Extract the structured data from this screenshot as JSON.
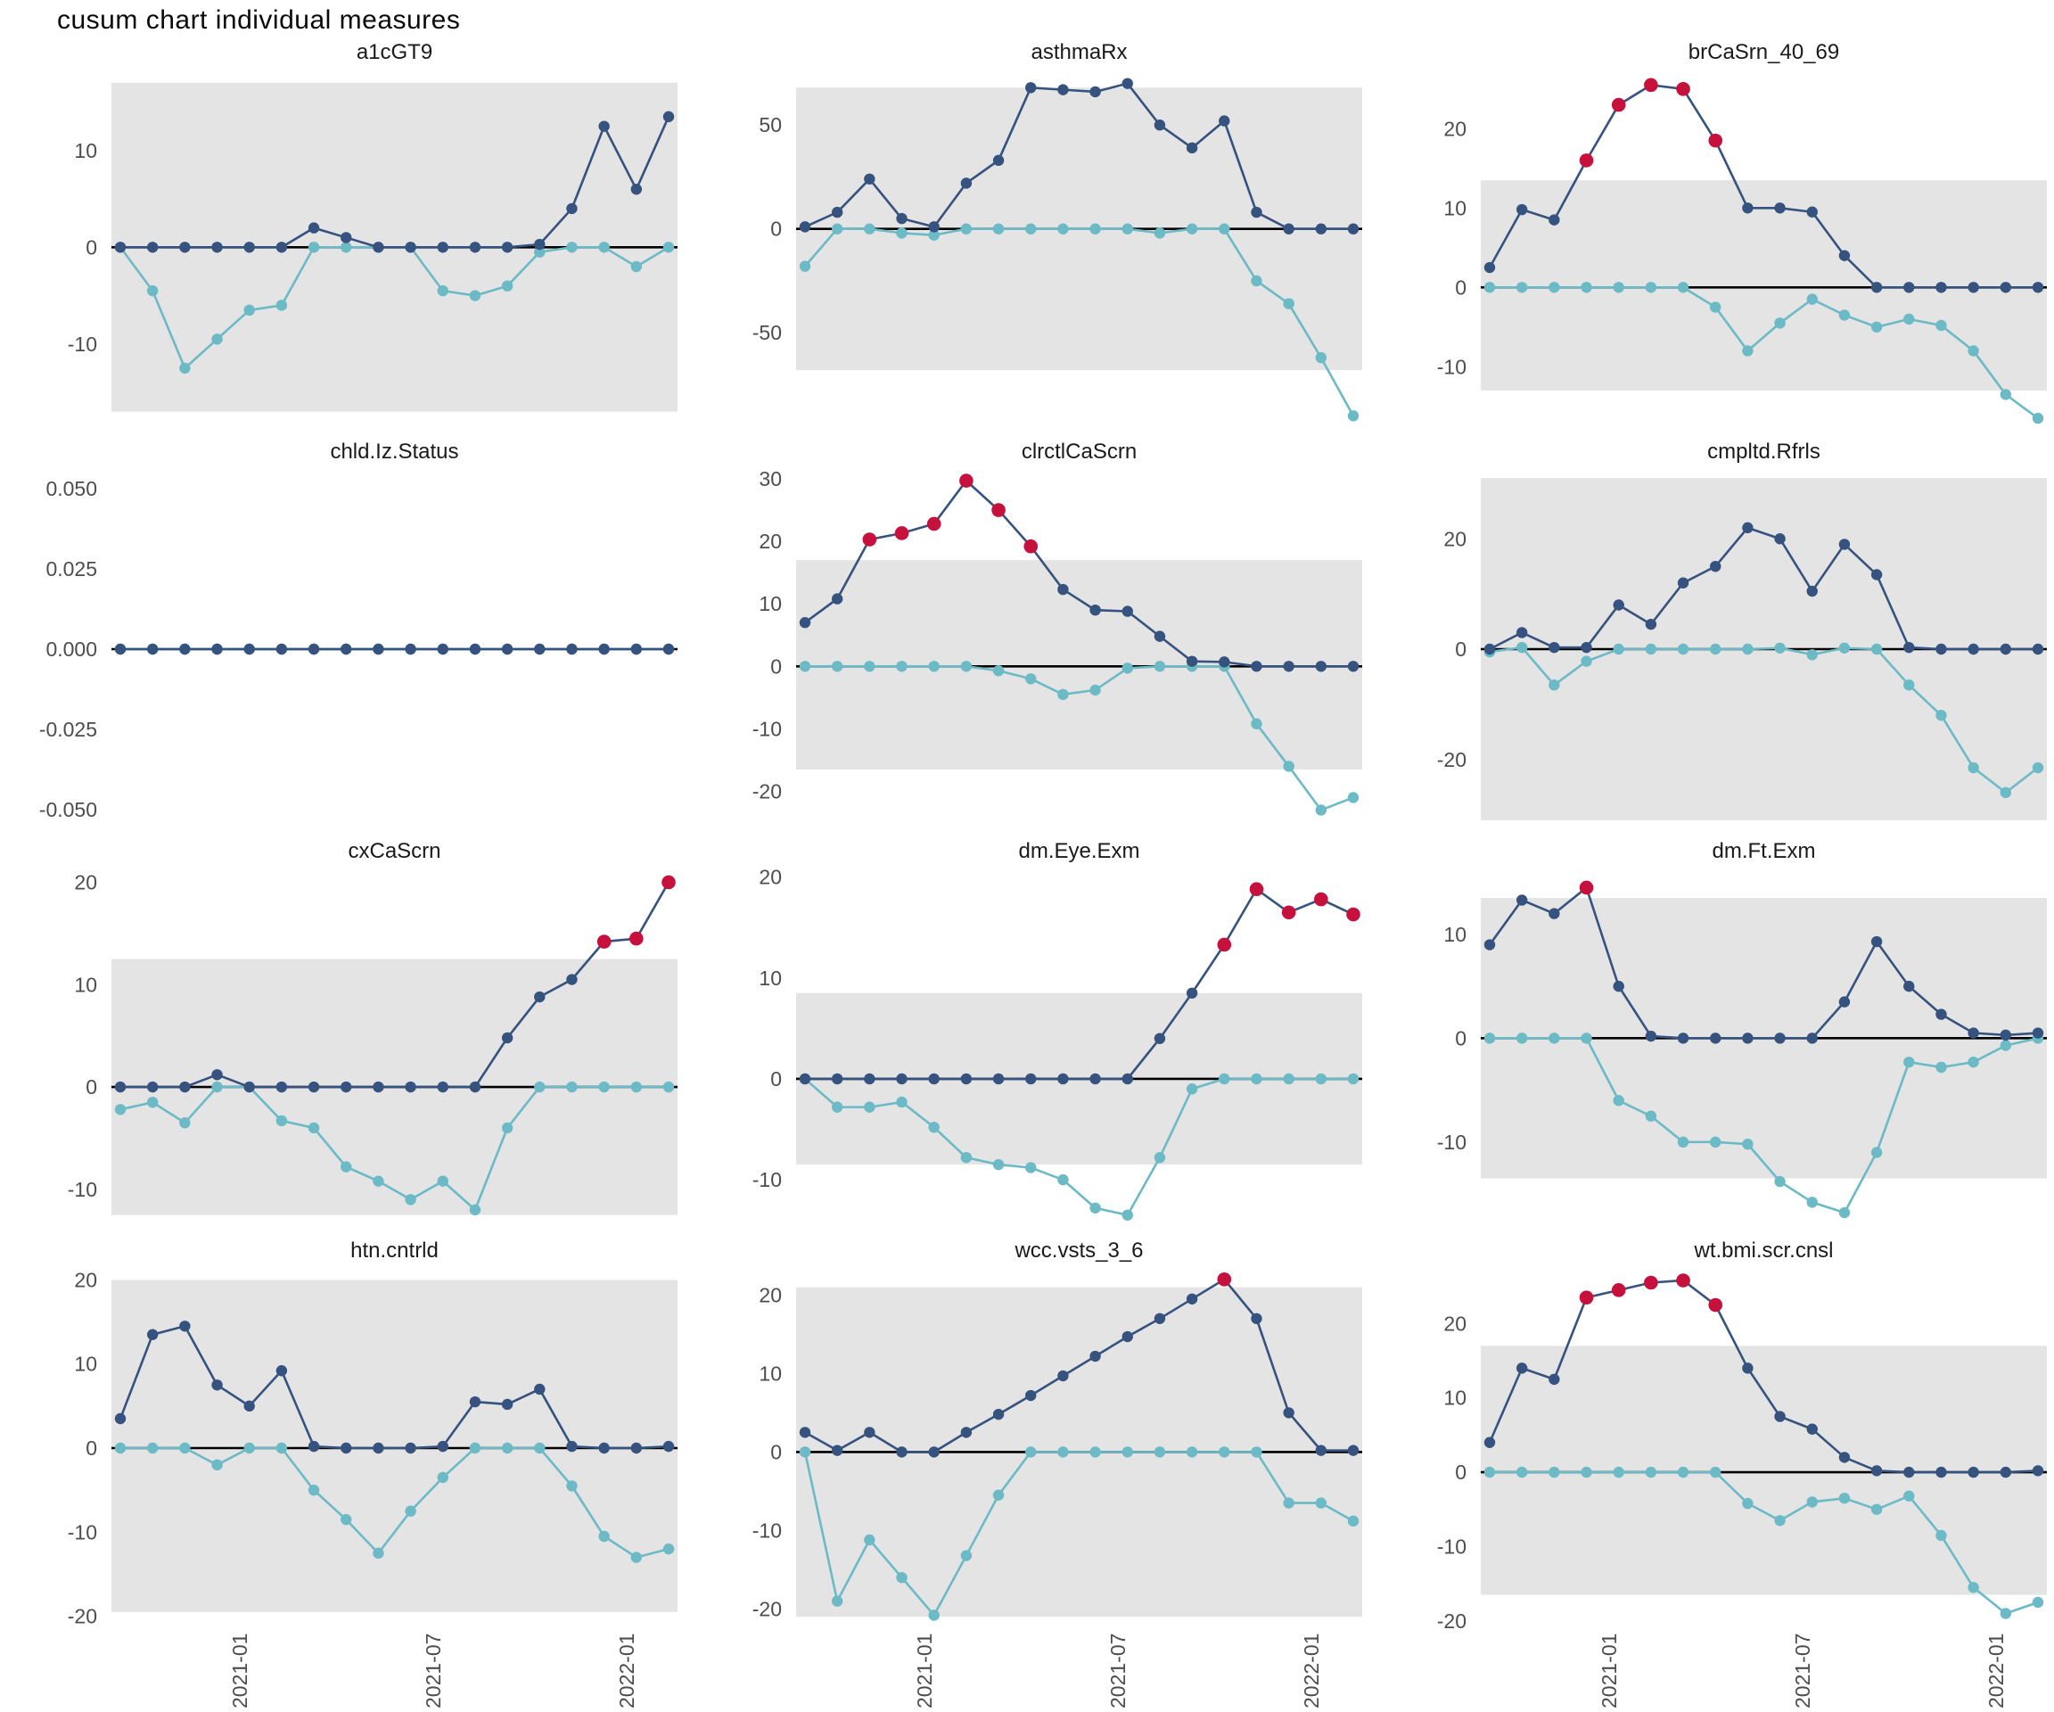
{
  "title": "cusum chart  individual measures",
  "colors": {
    "positive_series": "#36527E",
    "negative_series": "#6BBAC6",
    "signal_point": "#C5113C",
    "control_band": "#E4E4E4",
    "zero_line": "#000000",
    "axis_text": "#4D4D4D",
    "facet_title_text": "#1A1A1A"
  },
  "chart_data": {
    "type": "line",
    "title": "cusum chart  individual measures",
    "description": "Faceted cusum control charts; navy = upper cusum, teal = lower cusum, red points = signals outside control band, gray rectangle = control limits, black line at zero.",
    "n_points": 18,
    "x_tick_labels": [
      "2021-01",
      "2021-07",
      "2022-01"
    ],
    "x_tick_indices": [
      3,
      9,
      15
    ],
    "legend_position": "none",
    "grid": false,
    "facets": [
      {
        "name": "a1cGT9",
        "yticks": [
          {
            "label": "10",
            "v": 10
          },
          {
            "label": "0",
            "v": 0
          },
          {
            "label": "-10",
            "v": -10
          }
        ],
        "ylim": [
          -18.5,
          18
        ],
        "band": [
          -17,
          17
        ],
        "pos": [
          0,
          0,
          0,
          0,
          0,
          0,
          2,
          1,
          0,
          0,
          0,
          0,
          0,
          0.3,
          4,
          12.5,
          6,
          13.5
        ],
        "neg": [
          0,
          -4.5,
          -12.5,
          -9.5,
          -6.5,
          -6,
          0,
          0,
          0,
          0,
          -4.5,
          -5,
          -4,
          -0.5,
          0,
          0,
          -2,
          0
        ],
        "signals": []
      },
      {
        "name": "asthmaRx",
        "yticks": [
          {
            "label": "50",
            "v": 50
          },
          {
            "label": "0",
            "v": 0
          },
          {
            "label": "-50",
            "v": -50
          }
        ],
        "ylim": [
          -95,
          75
        ],
        "band": [
          -68,
          68
        ],
        "pos": [
          1,
          8,
          24,
          5,
          1,
          22,
          33,
          68,
          67,
          66,
          70,
          50,
          39,
          52,
          8,
          0,
          0,
          0
        ],
        "neg": [
          -18,
          0,
          0,
          -2,
          -3,
          0,
          0,
          0,
          0,
          0,
          0,
          -2,
          0,
          0,
          -25,
          -36,
          -62,
          -90
        ],
        "signals": []
      },
      {
        "name": "brCaSrn_40_69",
        "yticks": [
          {
            "label": "20",
            "v": 20
          },
          {
            "label": "10",
            "v": 10
          },
          {
            "label": "0",
            "v": 0
          },
          {
            "label": "-10",
            "v": -10
          }
        ],
        "ylim": [
          -17.5,
          27
        ],
        "band": [
          -13,
          13.5
        ],
        "pos": [
          2.5,
          9.8,
          8.5,
          16,
          23,
          25.5,
          25,
          18.5,
          10,
          10,
          9.5,
          4,
          0,
          0,
          0,
          0,
          0,
          0
        ],
        "neg": [
          0,
          0,
          0,
          0,
          0,
          0,
          0,
          -2.5,
          -8,
          -4.5,
          -1.5,
          -3.5,
          -5,
          -4,
          -4.8,
          -8,
          -13.5,
          -16.5
        ],
        "signals": [
          3,
          4,
          5,
          6,
          7
        ]
      },
      {
        "name": "chld.Iz.Status",
        "yticks": [
          {
            "label": "0.050",
            "v": 0.05
          },
          {
            "label": "0.025",
            "v": 0.025
          },
          {
            "label": "0.000",
            "v": 0
          },
          {
            "label": "-0.025",
            "v": -0.025
          },
          {
            "label": "-0.050",
            "v": -0.05
          }
        ],
        "ylim": [
          -0.055,
          0.055
        ],
        "band": null,
        "pos": [
          0,
          0,
          0,
          0,
          0,
          0,
          0,
          0,
          0,
          0,
          0,
          0,
          0,
          0,
          0,
          0,
          0,
          0
        ],
        "neg": [
          0,
          0,
          0,
          0,
          0,
          0,
          0,
          0,
          0,
          0,
          0,
          0,
          0,
          0,
          0,
          0,
          0,
          0
        ],
        "signals": []
      },
      {
        "name": "clrctlCaScrn",
        "yticks": [
          {
            "label": "30",
            "v": 30
          },
          {
            "label": "20",
            "v": 20
          },
          {
            "label": "10",
            "v": 10
          },
          {
            "label": "0",
            "v": 0
          },
          {
            "label": "-10",
            "v": -10
          },
          {
            "label": "-20",
            "v": -20
          }
        ],
        "ylim": [
          -25.5,
          31
        ],
        "band": [
          -16.5,
          17
        ],
        "pos": [
          7,
          10.8,
          20.3,
          21.3,
          22.8,
          29.7,
          25,
          19.2,
          12.3,
          9,
          8.8,
          4.8,
          0.8,
          0.7,
          0,
          0,
          0,
          0
        ],
        "neg": [
          0,
          0,
          0,
          0,
          0,
          0,
          -0.7,
          -2,
          -4.5,
          -3.8,
          -0.3,
          0,
          0,
          0,
          -9.2,
          -16,
          -23,
          -21
        ],
        "signals": [
          2,
          3,
          4,
          5,
          6,
          7
        ]
      },
      {
        "name": "cmpltd.Rfrls",
        "yticks": [
          {
            "label": "20",
            "v": 20
          },
          {
            "label": "0",
            "v": 0
          },
          {
            "label": "-20",
            "v": -20
          }
        ],
        "ylim": [
          -32,
          32
        ],
        "band": [
          -31,
          31
        ],
        "pos": [
          0,
          3,
          0.3,
          0.3,
          8,
          4.5,
          12,
          15,
          22,
          20,
          10.5,
          19,
          13.5,
          0.3,
          0,
          0,
          0,
          0
        ],
        "neg": [
          -0.5,
          0.3,
          -6.5,
          -2.2,
          0,
          0,
          0,
          0,
          0,
          0.2,
          -1,
          0.2,
          0,
          -6.5,
          -12,
          -21.5,
          -26,
          -21.5
        ],
        "signals": []
      },
      {
        "name": "cxCaScrn",
        "yticks": [
          {
            "label": "20",
            "v": 20
          },
          {
            "label": "10",
            "v": 10
          },
          {
            "label": "0",
            "v": 0
          },
          {
            "label": "-10",
            "v": -10
          }
        ],
        "ylim": [
          -13.5,
          21
        ],
        "band": [
          -12.5,
          12.5
        ],
        "pos": [
          0,
          0,
          0,
          1.2,
          0,
          0,
          0,
          0,
          0,
          0,
          0,
          0,
          4.8,
          8.8,
          10.5,
          14.2,
          14.5,
          20
        ],
        "neg": [
          -2.2,
          -1.5,
          -3.5,
          0,
          0,
          -3.3,
          -4,
          -7.8,
          -9.2,
          -11,
          -9.2,
          -12,
          -4,
          0,
          0,
          0,
          0,
          0
        ],
        "signals": [
          15,
          16,
          17
        ]
      },
      {
        "name": "dm.Eye.Exm",
        "yticks": [
          {
            "label": "20",
            "v": 20
          },
          {
            "label": "10",
            "v": 10
          },
          {
            "label": "0",
            "v": 0
          },
          {
            "label": "-10",
            "v": -10
          }
        ],
        "ylim": [
          -14.5,
          20.5
        ],
        "band": [
          -8.5,
          8.5
        ],
        "pos": [
          0,
          0,
          0,
          0,
          0,
          0,
          0,
          0,
          0,
          0,
          0,
          4,
          8.5,
          13.3,
          18.8,
          16.5,
          17.8,
          16.3
        ],
        "neg": [
          0,
          -2.8,
          -2.8,
          -2.3,
          -4.8,
          -7.8,
          -8.5,
          -8.8,
          -10,
          -12.8,
          -13.5,
          -7.8,
          -1,
          0,
          0,
          0,
          0,
          0
        ],
        "signals": [
          13,
          14,
          15,
          16,
          17
        ]
      },
      {
        "name": "dm.Ft.Exm",
        "yticks": [
          {
            "label": "10",
            "v": 10
          },
          {
            "label": "0",
            "v": 0
          },
          {
            "label": "-10",
            "v": -10
          }
        ],
        "ylim": [
          -18,
          16
        ],
        "band": [
          -13.5,
          13.5
        ],
        "pos": [
          9,
          13.3,
          12,
          14.5,
          5,
          0.2,
          0,
          0,
          0,
          0,
          0,
          3.5,
          9.3,
          5,
          2.3,
          0.5,
          0.3,
          0.5
        ],
        "neg": [
          0,
          0,
          0,
          0,
          -6,
          -7.5,
          -10,
          -10,
          -10.2,
          -13.8,
          -15.8,
          -16.8,
          -11,
          -2.3,
          -2.8,
          -2.3,
          -0.7,
          0
        ],
        "signals": [
          3
        ]
      },
      {
        "name": "htn.cntrld",
        "yticks": [
          {
            "label": "20",
            "v": 20
          },
          {
            "label": "10",
            "v": 10
          },
          {
            "label": "0",
            "v": 0
          },
          {
            "label": "-10",
            "v": -10
          },
          {
            "label": "-20",
            "v": -20
          }
        ],
        "ylim": [
          -21,
          21
        ],
        "band": [
          -19.5,
          20
        ],
        "pos": [
          3.5,
          13.5,
          14.5,
          7.5,
          5,
          9.2,
          0.2,
          0,
          0,
          0,
          0.2,
          5.5,
          5.2,
          7,
          0.2,
          0,
          0,
          0.2
        ],
        "neg": [
          0,
          0,
          0,
          -2,
          0,
          0,
          -5,
          -8.5,
          -12.5,
          -7.5,
          -3.5,
          0,
          0,
          0,
          -4.5,
          -10.5,
          -13,
          -12
        ],
        "signals": []
      },
      {
        "name": "wcc.vsts_3_6",
        "yticks": [
          {
            "label": "20",
            "v": 20
          },
          {
            "label": "10",
            "v": 10
          },
          {
            "label": "0",
            "v": 0
          },
          {
            "label": "-10",
            "v": -10
          },
          {
            "label": "-20",
            "v": -20
          }
        ],
        "ylim": [
          -22,
          23
        ],
        "band": [
          -21,
          21
        ],
        "pos": [
          2.5,
          0.2,
          2.5,
          0,
          0,
          2.5,
          4.8,
          7.2,
          9.7,
          12.2,
          14.7,
          17,
          19.5,
          22,
          17,
          5,
          0.2,
          0.2
        ],
        "neg": [
          0,
          -19,
          -11.2,
          -16,
          -20.8,
          -13.2,
          -5.5,
          0,
          0,
          0,
          0,
          0,
          0,
          0,
          0,
          -6.5,
          -6.5,
          -8.8
        ],
        "signals": [
          13
        ]
      },
      {
        "name": "wt.bmi.scr.cnsl",
        "yticks": [
          {
            "label": "20",
            "v": 20
          },
          {
            "label": "10",
            "v": 10
          },
          {
            "label": "0",
            "v": 0
          },
          {
            "label": "-10",
            "v": -10
          },
          {
            "label": "-20",
            "v": -20
          }
        ],
        "ylim": [
          -20.5,
          27
        ],
        "band": [
          -16.5,
          17
        ],
        "pos": [
          4,
          14,
          12.5,
          23.5,
          24.5,
          25.5,
          25.8,
          22.5,
          14,
          7.5,
          5.8,
          2,
          0.2,
          0,
          0,
          0,
          0,
          0.2
        ],
        "neg": [
          0,
          0,
          0,
          0,
          0,
          0,
          0,
          0,
          -4.2,
          -6.5,
          -4,
          -3.5,
          -5,
          -3.2,
          -8.5,
          -15.5,
          -19,
          -17.5
        ],
        "signals": [
          3,
          4,
          5,
          6,
          7
        ]
      }
    ]
  }
}
